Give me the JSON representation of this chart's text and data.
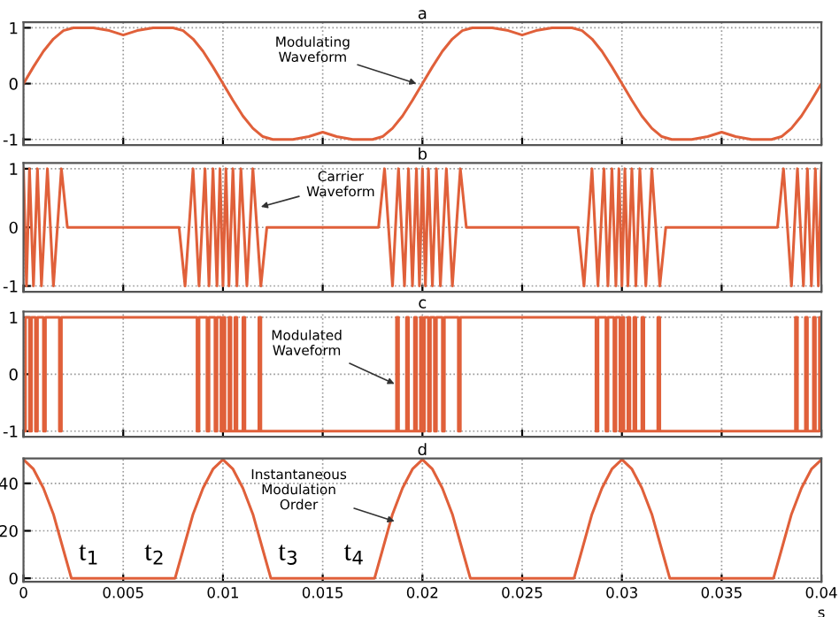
{
  "chart_data": [
    {
      "type": "line",
      "title": "a",
      "color": "#e0603a",
      "x": [
        0,
        0.0005,
        0.001,
        0.0015,
        0.002,
        0.0025,
        0.0035,
        0.0043,
        0.005,
        0.0057,
        0.0065,
        0.0075,
        0.008,
        0.0085,
        0.009,
        0.0095,
        0.01,
        0.0105,
        0.011,
        0.0115,
        0.012,
        0.0125,
        0.0135,
        0.0143,
        0.015,
        0.0157,
        0.0165,
        0.0175,
        0.018,
        0.0185,
        0.019,
        0.0195,
        0.02,
        0.0205,
        0.021,
        0.0215,
        0.022,
        0.0225,
        0.0235,
        0.0243,
        0.025,
        0.0257,
        0.0265,
        0.0275,
        0.028,
        0.0285,
        0.029,
        0.0295,
        0.03,
        0.0305,
        0.031,
        0.0315,
        0.032,
        0.0325,
        0.0335,
        0.0343,
        0.035,
        0.0357,
        0.0365,
        0.0375,
        0.038,
        0.0385,
        0.039,
        0.0395,
        0.04
      ],
      "values": [
        0,
        0.3,
        0.58,
        0.8,
        0.95,
        1,
        1,
        0.95,
        0.87,
        0.95,
        1,
        1,
        0.95,
        0.8,
        0.58,
        0.3,
        0,
        -0.3,
        -0.58,
        -0.8,
        -0.95,
        -1,
        -1,
        -0.95,
        -0.87,
        -0.95,
        -1,
        -1,
        -0.95,
        -0.8,
        -0.58,
        -0.3,
        0,
        0.3,
        0.58,
        0.8,
        0.95,
        1,
        1,
        0.95,
        0.87,
        0.95,
        1,
        1,
        0.95,
        0.8,
        0.58,
        0.3,
        0,
        -0.3,
        -0.58,
        -0.8,
        -0.95,
        -1,
        -1,
        -0.95,
        -0.87,
        -0.95,
        -1,
        -1,
        -0.95,
        -0.8,
        -0.58,
        -0.3,
        0
      ],
      "xlim": [
        0,
        0.04
      ],
      "xticks": [
        0,
        0.005,
        0.01,
        0.015,
        0.02,
        0.025,
        0.03,
        0.035,
        0.04
      ],
      "ylim": [
        -1.1,
        1.1
      ],
      "yticks": [
        -1,
        0,
        1
      ],
      "grid": true,
      "tick_labels": "y",
      "annotations": [
        {
          "text": "Modulating\nWaveform",
          "x": 0.0197,
          "y": 0
        }
      ]
    },
    {
      "type": "line",
      "title": "b",
      "color": "#e0603a",
      "x": [
        0,
        0.00015,
        0.0003,
        0.0005,
        0.0007,
        0.0009,
        0.0012,
        0.0015,
        0.0019,
        0.0022,
        0.0078,
        0.0081,
        0.0085,
        0.0088,
        0.0091,
        0.0093,
        0.0095,
        0.0097,
        0.00985,
        0.01,
        0.01015,
        0.0103,
        0.0105,
        0.0107,
        0.0109,
        0.0112,
        0.0115,
        0.0119,
        0.0122,
        0.0178,
        0.0181,
        0.0185,
        0.0188,
        0.0191,
        0.0193,
        0.0195,
        0.0197,
        0.01985,
        0.02,
        0.02015,
        0.0203,
        0.0205,
        0.0207,
        0.0209,
        0.0212,
        0.0215,
        0.0219,
        0.0222,
        0.0278,
        0.0281,
        0.0285,
        0.0288,
        0.0291,
        0.0293,
        0.0295,
        0.0297,
        0.02985,
        0.03,
        0.03015,
        0.0303,
        0.0305,
        0.0307,
        0.0309,
        0.0312,
        0.0315,
        0.0319,
        0.0322,
        0.0378,
        0.0381,
        0.0385,
        0.0388,
        0.0391,
        0.0393,
        0.0395,
        0.0397,
        0.03985,
        0.04
      ],
      "values": [
        1,
        -1,
        1,
        -1,
        1,
        -1,
        1,
        -1,
        1,
        0,
        0,
        -1,
        1,
        -1,
        1,
        -1,
        1,
        -1,
        1,
        -1,
        1,
        -1,
        1,
        -1,
        1,
        -1,
        1,
        -1,
        0,
        0,
        1,
        -1,
        1,
        -1,
        1,
        -1,
        1,
        -1,
        1,
        -1,
        1,
        -1,
        1,
        -1,
        1,
        -1,
        1,
        0,
        0,
        -1,
        1,
        -1,
        1,
        -1,
        1,
        -1,
        1,
        -1,
        1,
        -1,
        1,
        -1,
        1,
        -1,
        1,
        -1,
        0,
        0,
        1,
        -1,
        1,
        -1,
        1,
        -1,
        1,
        -1,
        1
      ],
      "xlim": [
        0,
        0.04
      ],
      "xticks": [
        0,
        0.005,
        0.01,
        0.015,
        0.02,
        0.025,
        0.03,
        0.035,
        0.04
      ],
      "ylim": [
        -1.1,
        1.1
      ],
      "yticks": [
        -1,
        0,
        1
      ],
      "grid": true,
      "tick_labels": "y",
      "annotations": [
        {
          "text": "Carrier\nWaveform",
          "x": 0.0119,
          "y": 0.35
        }
      ]
    },
    {
      "type": "line",
      "title": "c",
      "color": "#e0603a",
      "x": [
        0,
        0.0001,
        0.0001,
        0.0003,
        0.0003,
        0.0004,
        0.0004,
        0.0006,
        0.0006,
        0.0007,
        0.0007,
        0.001,
        0.001,
        0.0011,
        0.0011,
        0.0018,
        0.0018,
        0.0019,
        0.0019,
        0.0087,
        0.0087,
        0.0088,
        0.0088,
        0.0092,
        0.0092,
        0.0093,
        0.0093,
        0.0096,
        0.0096,
        0.0097,
        0.0097,
        0.0099,
        0.0099,
        0.01,
        0.01,
        0.0101,
        0.0101,
        0.0103,
        0.0103,
        0.0104,
        0.0104,
        0.0106,
        0.0106,
        0.0107,
        0.0107,
        0.011,
        0.011,
        0.0111,
        0.0111,
        0.0118,
        0.0118,
        0.0119,
        0.0119,
        0.0187,
        0.0187,
        0.0188,
        0.0188,
        0.0192,
        0.0192,
        0.0193,
        0.0193,
        0.0196,
        0.0196,
        0.0197,
        0.0197,
        0.0199,
        0.0199,
        0.02,
        0.02,
        0.0201,
        0.0201,
        0.0203,
        0.0203,
        0.0204,
        0.0204,
        0.0206,
        0.0206,
        0.0207,
        0.0207,
        0.021,
        0.021,
        0.0211,
        0.0211,
        0.0218,
        0.0218,
        0.0219,
        0.0219,
        0.0287,
        0.0287,
        0.0288,
        0.0288,
        0.0292,
        0.0292,
        0.0293,
        0.0293,
        0.0296,
        0.0296,
        0.0297,
        0.0297,
        0.0299,
        0.0299,
        0.03,
        0.03,
        0.0301,
        0.0301,
        0.0303,
        0.0303,
        0.0304,
        0.0304,
        0.0306,
        0.0306,
        0.0307,
        0.0307,
        0.031,
        0.031,
        0.0311,
        0.0311,
        0.0318,
        0.0318,
        0.0319,
        0.0319,
        0.0387,
        0.0387,
        0.0388,
        0.0388,
        0.0392,
        0.0392,
        0.0393,
        0.0393,
        0.0396,
        0.0396,
        0.0397,
        0.0397,
        0.0399,
        0.0399,
        0.04
      ],
      "values": [
        -1,
        -1,
        1,
        1,
        -1,
        -1,
        1,
        1,
        -1,
        -1,
        1,
        1,
        -1,
        -1,
        1,
        1,
        -1,
        -1,
        1,
        1,
        -1,
        -1,
        1,
        1,
        -1,
        -1,
        1,
        1,
        -1,
        -1,
        1,
        1,
        -1,
        -1,
        1,
        1,
        -1,
        -1,
        1,
        1,
        -1,
        -1,
        1,
        1,
        -1,
        -1,
        1,
        1,
        -1,
        -1,
        1,
        1,
        -1,
        -1,
        1,
        1,
        -1,
        -1,
        1,
        1,
        -1,
        -1,
        1,
        1,
        -1,
        -1,
        1,
        1,
        -1,
        -1,
        1,
        1,
        -1,
        -1,
        1,
        1,
        -1,
        -1,
        1,
        1,
        -1,
        -1,
        1,
        1,
        -1,
        -1,
        1,
        1,
        -1,
        -1,
        1,
        1,
        -1,
        -1,
        1,
        1,
        -1,
        -1,
        1,
        1,
        -1,
        -1,
        1,
        1,
        -1,
        -1,
        1,
        1,
        -1,
        -1,
        1,
        1,
        -1,
        -1,
        1,
        1,
        -1,
        -1,
        1,
        1,
        -1,
        -1,
        1,
        1,
        -1,
        -1,
        1,
        1,
        -1,
        -1,
        1,
        1,
        -1,
        -1,
        1,
        1
      ],
      "xlim": [
        0,
        0.04
      ],
      "xticks": [
        0,
        0.005,
        0.01,
        0.015,
        0.02,
        0.025,
        0.03,
        0.035,
        0.04
      ],
      "ylim": [
        -1.1,
        1.1
      ],
      "yticks": [
        -1,
        0,
        1
      ],
      "grid": true,
      "tick_labels": "y",
      "annotations": [
        {
          "text": "Modulated\nWaveform",
          "x": 0.0186,
          "y": -0.17
        }
      ]
    },
    {
      "type": "line",
      "title": "d",
      "color": "#e0603a",
      "xlabel": "s",
      "x": [
        0,
        0.0005,
        0.001,
        0.0015,
        0.002,
        0.0024,
        0.0076,
        0.008,
        0.0085,
        0.009,
        0.0095,
        0.01,
        0.0105,
        0.011,
        0.0115,
        0.012,
        0.0124,
        0.0176,
        0.018,
        0.0185,
        0.019,
        0.0195,
        0.02,
        0.0205,
        0.021,
        0.0215,
        0.022,
        0.0224,
        0.0276,
        0.028,
        0.0285,
        0.029,
        0.0295,
        0.03,
        0.0305,
        0.031,
        0.0315,
        0.032,
        0.0324,
        0.0376,
        0.038,
        0.0385,
        0.039,
        0.0395,
        0.04
      ],
      "values": [
        50,
        46,
        38,
        27,
        12,
        0,
        0,
        12,
        27,
        38,
        46,
        50,
        46,
        38,
        27,
        12,
        0,
        0,
        12,
        27,
        38,
        46,
        50,
        46,
        38,
        27,
        12,
        0,
        0,
        12,
        27,
        38,
        46,
        50,
        46,
        38,
        27,
        12,
        0,
        0,
        12,
        27,
        38,
        46,
        50
      ],
      "xlim": [
        0,
        0.04
      ],
      "xticks": [
        0,
        0.005,
        0.01,
        0.015,
        0.02,
        0.025,
        0.03,
        0.035,
        0.04
      ],
      "ylim": [
        -1.5,
        50.5
      ],
      "yticks": [
        0,
        20,
        40
      ],
      "grid": true,
      "annotations": [
        {
          "text": "Instantaneous\nModulation\nOrder",
          "x": 0.0186,
          "y": 24
        },
        {
          "text": "t$_{1}$",
          "x": 0.0024,
          "y": 0
        },
        {
          "text": "t$_{2}$",
          "x": 0.0076,
          "y": 0
        },
        {
          "text": "t$_{3}$",
          "x": 0.0124,
          "y": 0
        },
        {
          "text": "t$_{4}$",
          "x": 0.0176,
          "y": 0
        }
      ]
    }
  ]
}
